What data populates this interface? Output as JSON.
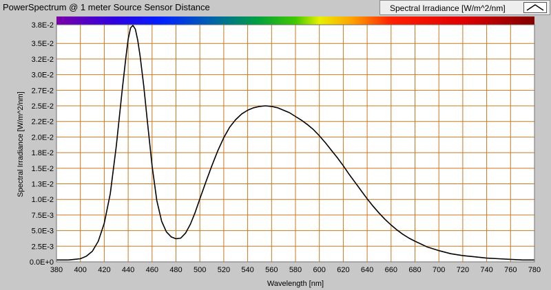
{
  "window": {
    "title": "PowerSpectrum @ 1 meter Source Sensor Distance"
  },
  "legend": {
    "label": "Spectral Irradiance [W/m^2/nm]",
    "icon": "line-swatch-icon"
  },
  "colors": {
    "background": "#c8c8c8",
    "plot_area": "#ffffff",
    "grid": "#c8781e",
    "line": "#000000"
  },
  "chart_data": {
    "type": "line",
    "title": "PowerSpectrum @ 1 meter Source Sensor Distance",
    "xlabel": "Wavelength [nm]",
    "ylabel": "Spectral Irradiance [W/m^2/nm]",
    "xlim": [
      380,
      780
    ],
    "ylim": [
      0,
      0.038
    ],
    "grid": true,
    "legend_position": "top-right",
    "x_ticks": [
      380,
      400,
      420,
      440,
      460,
      480,
      500,
      520,
      540,
      560,
      580,
      600,
      620,
      640,
      660,
      680,
      700,
      720,
      740,
      760,
      780
    ],
    "x_tick_labels": [
      "380",
      "400",
      "420",
      "440",
      "460",
      "480",
      "500",
      "520",
      "540",
      "560",
      "580",
      "600",
      "620",
      "640",
      "660",
      "680",
      "700",
      "720",
      "740",
      "760",
      "780"
    ],
    "y_ticks": [
      0,
      0.0025,
      0.005,
      0.0075,
      0.01,
      0.0125,
      0.015,
      0.0175,
      0.02,
      0.0225,
      0.025,
      0.0275,
      0.03,
      0.0325,
      0.035,
      0.038
    ],
    "y_tick_labels": [
      "0.0E+0",
      "2.5E-3",
      "5.0E-3",
      "7.5E-3",
      "1.0E-2",
      "1.3E-2",
      "1.5E-2",
      "1.8E-2",
      "2.0E-2",
      "2.2E-2",
      "2.5E-2",
      "2.7E-2",
      "3.0E-2",
      "3.2E-2",
      "3.5E-2",
      "3.8E-2"
    ],
    "series": [
      {
        "x": [
          380,
          385,
          390,
          395,
          400,
          405,
          410,
          415,
          420,
          425,
          430,
          435,
          438,
          440,
          442,
          444,
          446,
          448,
          450,
          453,
          456,
          460,
          464,
          468,
          472,
          476,
          480,
          484,
          488,
          492,
          496,
          500,
          505,
          510,
          515,
          520,
          525,
          530,
          535,
          540,
          545,
          550,
          555,
          560,
          565,
          570,
          575,
          580,
          585,
          590,
          595,
          600,
          605,
          610,
          615,
          620,
          625,
          630,
          635,
          640,
          645,
          650,
          655,
          660,
          665,
          670,
          675,
          680,
          690,
          700,
          710,
          720,
          730,
          740,
          750,
          760,
          770,
          780
        ],
        "y": [
          0.0003,
          0.0003,
          0.0003,
          0.0004,
          0.0005,
          0.0009,
          0.0017,
          0.0033,
          0.0062,
          0.0109,
          0.0185,
          0.0275,
          0.0326,
          0.0357,
          0.0375,
          0.0379,
          0.0373,
          0.0355,
          0.033,
          0.0282,
          0.0226,
          0.0154,
          0.0098,
          0.0065,
          0.0048,
          0.004,
          0.0037,
          0.0038,
          0.0046,
          0.006,
          0.0079,
          0.0101,
          0.0128,
          0.0154,
          0.0178,
          0.0199,
          0.0216,
          0.0228,
          0.0237,
          0.0243,
          0.0247,
          0.0249,
          0.025,
          0.0249,
          0.0247,
          0.0243,
          0.0239,
          0.0233,
          0.0227,
          0.022,
          0.0212,
          0.0202,
          0.0191,
          0.0179,
          0.0167,
          0.0154,
          0.014,
          0.0127,
          0.0114,
          0.0101,
          0.0089,
          0.0078,
          0.0068,
          0.0059,
          0.0051,
          0.0044,
          0.0038,
          0.0033,
          0.0024,
          0.0018,
          0.0013,
          0.001,
          0.0008,
          0.0006,
          0.0005,
          0.0004,
          0.0003,
          0.0003
        ]
      }
    ]
  }
}
